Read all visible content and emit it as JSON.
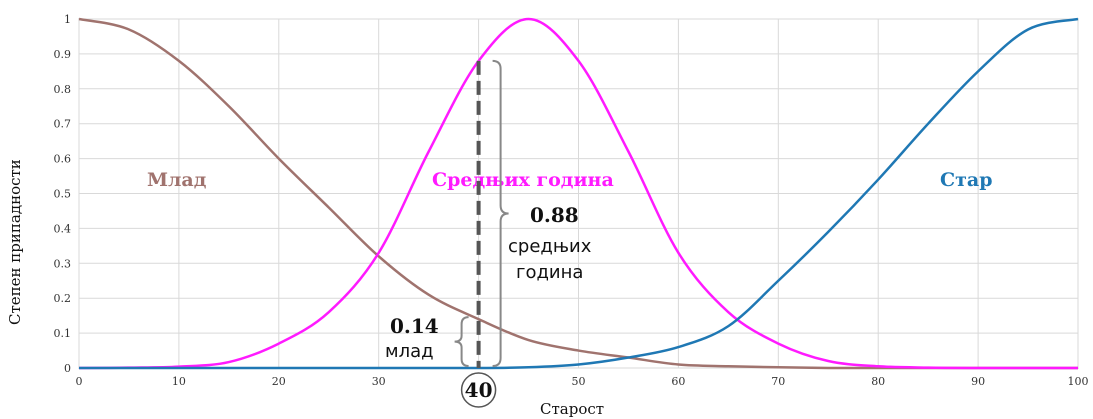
{
  "chart_data": {
    "type": "line",
    "title": "",
    "xlabel": "Старост",
    "ylabel": "Степен припадности",
    "xlim": [
      0,
      100
    ],
    "ylim": [
      0,
      1
    ],
    "grid": true,
    "x_ticks": [
      "0",
      "10",
      "20",
      "30",
      "40",
      "50",
      "60",
      "70",
      "80",
      "90",
      "100"
    ],
    "y_ticks": [
      "0",
      "0.1",
      "0.2",
      "0.3",
      "0.4",
      "0.5",
      "0.6",
      "0.7",
      "0.8",
      "0.9",
      "1"
    ],
    "series": [
      {
        "name": "Млад",
        "color": "#a0736e",
        "x": [
          0,
          5,
          10,
          15,
          20,
          25,
          30,
          35,
          40,
          45,
          50,
          55,
          60,
          65,
          70,
          75,
          80,
          85,
          90,
          95,
          100
        ],
        "values": [
          1.0,
          0.97,
          0.88,
          0.75,
          0.6,
          0.46,
          0.32,
          0.21,
          0.14,
          0.08,
          0.05,
          0.03,
          0.01,
          0.005,
          0.002,
          0.0,
          0.0,
          0.0,
          0.0,
          0.0,
          0.0
        ]
      },
      {
        "name": "Средњих година",
        "color": "#ff1aff",
        "x": [
          0,
          5,
          10,
          15,
          20,
          25,
          30,
          35,
          40,
          45,
          50,
          55,
          60,
          65,
          70,
          75,
          80,
          85,
          90,
          95,
          100
        ],
        "values": [
          0.0,
          0.001,
          0.004,
          0.017,
          0.07,
          0.16,
          0.33,
          0.62,
          0.88,
          1.0,
          0.88,
          0.62,
          0.33,
          0.16,
          0.07,
          0.02,
          0.005,
          0.001,
          0.0,
          0.0,
          0.0
        ]
      },
      {
        "name": "Стар",
        "color": "#1f78b4",
        "x": [
          0,
          5,
          10,
          15,
          20,
          25,
          30,
          35,
          40,
          45,
          50,
          55,
          60,
          65,
          70,
          75,
          80,
          85,
          90,
          95,
          100
        ],
        "values": [
          0.0,
          0.0,
          0.0,
          0.0,
          0.0,
          0.0,
          0.0,
          0.0,
          0.0,
          0.002,
          0.01,
          0.03,
          0.06,
          0.12,
          0.25,
          0.39,
          0.54,
          0.7,
          0.85,
          0.97,
          1.0
        ]
      }
    ],
    "annotations": {
      "marker_x": 40,
      "marker_label": "40",
      "young_value": "0.14",
      "young_label": "млад",
      "young_membership": 0.14,
      "middle_value": "0.88",
      "middle_label_line1": "средњих",
      "middle_label_line2": "година",
      "middle_membership": 0.88
    }
  }
}
